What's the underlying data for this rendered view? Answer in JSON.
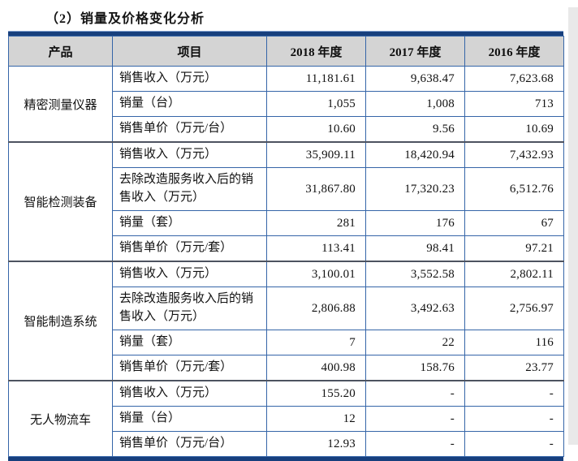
{
  "page": {
    "title": "（2）销量及价格变化分析"
  },
  "table": {
    "headers": [
      "产品",
      "项目",
      "2018 年度",
      "2017 年度",
      "2016 年度"
    ],
    "groups": [
      {
        "product": "精密测量仪器",
        "rows": [
          {
            "item": "销售收入（万元）",
            "values": [
              "11,181.61",
              "9,638.47",
              "7,623.68"
            ]
          },
          {
            "item": "销量（台）",
            "values": [
              "1,055",
              "1,008",
              "713"
            ]
          },
          {
            "item": "销售单价（万元/台）",
            "values": [
              "10.60",
              "9.56",
              "10.69"
            ]
          }
        ]
      },
      {
        "product": "智能检测装备",
        "rows": [
          {
            "item": "销售收入（万元）",
            "values": [
              "35,909.11",
              "18,420.94",
              "7,432.93"
            ]
          },
          {
            "item": "去除改造服务收入后的销售收入（万元）",
            "values": [
              "31,867.80",
              "17,320.23",
              "6,512.76"
            ]
          },
          {
            "item": "销量（套）",
            "values": [
              "281",
              "176",
              "67"
            ]
          },
          {
            "item": "销售单价（万元/套）",
            "values": [
              "113.41",
              "98.41",
              "97.21"
            ]
          }
        ]
      },
      {
        "product": "智能制造系统",
        "rows": [
          {
            "item": "销售收入（万元）",
            "values": [
              "3,100.01",
              "3,552.58",
              "2,802.11"
            ]
          },
          {
            "item": "去除改造服务收入后的销售收入（万元）",
            "values": [
              "2,806.88",
              "3,492.63",
              "2,756.97"
            ]
          },
          {
            "item": "销量（套）",
            "values": [
              "7",
              "22",
              "116"
            ]
          },
          {
            "item": "销售单价（万元/套）",
            "values": [
              "400.98",
              "158.76",
              "23.77"
            ]
          }
        ]
      },
      {
        "product": "无人物流车",
        "rows": [
          {
            "item": "销售收入（万元）",
            "values": [
              "155.20",
              "-",
              "-"
            ]
          },
          {
            "item": "销量（台）",
            "values": [
              "12",
              "-",
              "-"
            ]
          },
          {
            "item": "销售单价（万元/台）",
            "values": [
              "12.93",
              "-",
              "-"
            ]
          }
        ]
      }
    ],
    "colors": {
      "grid_border": "#3565a8",
      "thick_border": "#173f7d",
      "header_bg": "#d4d4d4",
      "group_separator": "#4d5360"
    }
  }
}
